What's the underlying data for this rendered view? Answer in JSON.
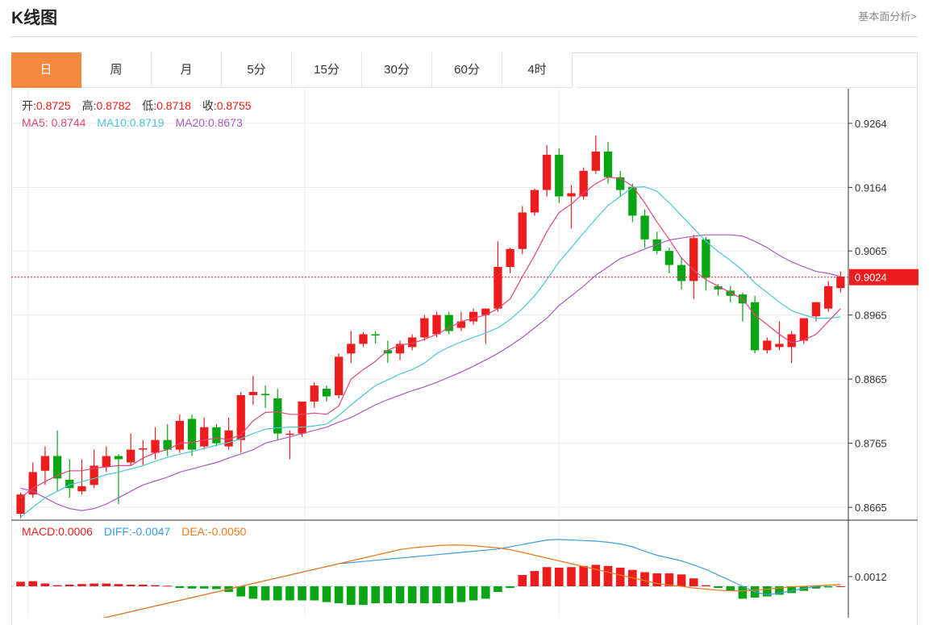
{
  "header": {
    "title": "K线图",
    "fundamental_link": "基本面分析>"
  },
  "tabs": [
    {
      "label": "日",
      "active": true
    },
    {
      "label": "周",
      "active": false
    },
    {
      "label": "月",
      "active": false
    },
    {
      "label": "5分",
      "active": false
    },
    {
      "label": "15分",
      "active": false
    },
    {
      "label": "30分",
      "active": false
    },
    {
      "label": "60分",
      "active": false
    },
    {
      "label": "4时",
      "active": false
    }
  ],
  "ohlc_info": {
    "open_label": "开:",
    "open": "0.8725",
    "high_label": "高:",
    "high": "0.8782",
    "low_label": "低:",
    "low": "0.8718",
    "close_label": "收:",
    "close": "0.8755"
  },
  "ma_info": {
    "ma5_label": "MA5:",
    "ma5": "0.8744",
    "ma10_label": "MA10:",
    "ma10": "0.8719",
    "ma20_label": "MA20:",
    "ma20": "0.8673"
  },
  "macd_info": {
    "macd_label": "MACD:",
    "macd": "0.0006",
    "diff_label": "DIFF:",
    "diff": "-0.0047",
    "dea_label": "DEA:",
    "dea": "-0.0050"
  },
  "colors": {
    "up": "#ee1d1d",
    "down": "#0aa514",
    "ma5": "#e0457b",
    "ma10": "#4bc6d3",
    "ma20": "#a85bc1",
    "diff": "#3c9ee0",
    "dea": "#f07a1c",
    "accent": "#f5883f"
  },
  "chart_data": {
    "type": "candlestick",
    "price_axis": {
      "ylim": [
        0.8645,
        0.9318
      ],
      "ticks": [
        "0.9264",
        "0.9164",
        "0.9065",
        "0.8965",
        "0.8865",
        "0.8765",
        "0.8665"
      ]
    },
    "current_price": "0.9024",
    "macd_axis": {
      "ticks": [
        "0.0012"
      ]
    },
    "candles": [
      [
        0.8655,
        0.8685,
        0.8648,
        0.8688
      ],
      [
        0.8685,
        0.872,
        0.868,
        0.8735
      ],
      [
        0.8722,
        0.8745,
        0.87,
        0.876
      ],
      [
        0.8745,
        0.871,
        0.869,
        0.8785
      ],
      [
        0.8708,
        0.8695,
        0.868,
        0.874
      ],
      [
        0.869,
        0.8698,
        0.8685,
        0.874
      ],
      [
        0.87,
        0.873,
        0.8695,
        0.8755
      ],
      [
        0.8728,
        0.8745,
        0.872,
        0.876
      ],
      [
        0.8745,
        0.874,
        0.867,
        0.8748
      ],
      [
        0.8735,
        0.8755,
        0.873,
        0.878
      ],
      [
        0.8755,
        0.8757,
        0.873,
        0.877
      ],
      [
        0.875,
        0.877,
        0.874,
        0.879
      ],
      [
        0.877,
        0.8755,
        0.8745,
        0.8795
      ],
      [
        0.8755,
        0.88,
        0.875,
        0.881
      ],
      [
        0.8803,
        0.8755,
        0.8745,
        0.881
      ],
      [
        0.876,
        0.879,
        0.8755,
        0.8805
      ],
      [
        0.879,
        0.8765,
        0.876,
        0.8795
      ],
      [
        0.876,
        0.8785,
        0.8755,
        0.8805
      ],
      [
        0.877,
        0.884,
        0.875,
        0.8845
      ],
      [
        0.884,
        0.8845,
        0.8825,
        0.887
      ],
      [
        0.8842,
        0.884,
        0.882,
        0.8855
      ],
      [
        0.8835,
        0.878,
        0.877,
        0.885
      ],
      [
        0.878,
        0.878,
        0.874,
        0.8785
      ],
      [
        0.878,
        0.883,
        0.8775,
        0.883
      ],
      [
        0.883,
        0.8855,
        0.882,
        0.886
      ],
      [
        0.885,
        0.8838,
        0.883,
        0.8855
      ],
      [
        0.884,
        0.89,
        0.8835,
        0.8905
      ],
      [
        0.8905,
        0.892,
        0.889,
        0.894
      ],
      [
        0.892,
        0.8935,
        0.8915,
        0.8938
      ],
      [
        0.8935,
        0.8933,
        0.892,
        0.894
      ],
      [
        0.891,
        0.8905,
        0.889,
        0.8925
      ],
      [
        0.8905,
        0.892,
        0.8895,
        0.8925
      ],
      [
        0.8915,
        0.893,
        0.891,
        0.8935
      ],
      [
        0.893,
        0.896,
        0.8925,
        0.8965
      ],
      [
        0.8935,
        0.8965,
        0.893,
        0.897
      ],
      [
        0.8965,
        0.894,
        0.8935,
        0.897
      ],
      [
        0.8945,
        0.8955,
        0.894,
        0.897
      ],
      [
        0.8955,
        0.897,
        0.895,
        0.8975
      ],
      [
        0.8965,
        0.8975,
        0.892,
        0.8975
      ],
      [
        0.8975,
        0.904,
        0.897,
        0.908
      ],
      [
        0.904,
        0.9068,
        0.903,
        0.907
      ],
      [
        0.9068,
        0.9125,
        0.906,
        0.9135
      ],
      [
        0.9125,
        0.916,
        0.912,
        0.9162
      ],
      [
        0.916,
        0.9215,
        0.915,
        0.923
      ],
      [
        0.9215,
        0.915,
        0.914,
        0.9225
      ],
      [
        0.915,
        0.9155,
        0.91,
        0.9168
      ],
      [
        0.915,
        0.919,
        0.9145,
        0.9195
      ],
      [
        0.919,
        0.922,
        0.9185,
        0.9245
      ],
      [
        0.922,
        0.918,
        0.917,
        0.9235
      ],
      [
        0.918,
        0.916,
        0.915,
        0.919
      ],
      [
        0.9165,
        0.912,
        0.911,
        0.917
      ],
      [
        0.912,
        0.9083,
        0.907,
        0.913
      ],
      [
        0.9083,
        0.9065,
        0.906,
        0.9095
      ],
      [
        0.9065,
        0.9043,
        0.903,
        0.907
      ],
      [
        0.9043,
        0.9018,
        0.9005,
        0.9055
      ],
      [
        0.9018,
        0.9085,
        0.899,
        0.909
      ],
      [
        0.9083,
        0.9023,
        0.9003,
        0.9087
      ],
      [
        0.901,
        0.9005,
        0.8995,
        0.9013
      ],
      [
        0.9003,
        0.8995,
        0.8985,
        0.901
      ],
      [
        0.8997,
        0.8983,
        0.8955,
        0.9
      ],
      [
        0.8985,
        0.891,
        0.8905,
        0.8995
      ],
      [
        0.891,
        0.8925,
        0.8905,
        0.893
      ],
      [
        0.8915,
        0.892,
        0.891,
        0.8955
      ],
      [
        0.8915,
        0.8935,
        0.889,
        0.894
      ],
      [
        0.8925,
        0.896,
        0.892,
        0.896
      ],
      [
        0.8963,
        0.8985,
        0.8955,
        0.8985
      ],
      [
        0.8975,
        0.901,
        0.897,
        0.9018
      ],
      [
        0.9007,
        0.9025,
        0.9,
        0.9033
      ]
    ],
    "ma5": [
      0.868,
      0.8695,
      0.8705,
      0.8715,
      0.8722,
      0.8722,
      0.8726,
      0.8728,
      0.873,
      0.873,
      0.8742,
      0.875,
      0.8755,
      0.8765,
      0.8766,
      0.877,
      0.8773,
      0.8771,
      0.8778,
      0.88,
      0.8813,
      0.8814,
      0.881,
      0.881,
      0.8812,
      0.881,
      0.8823,
      0.8865,
      0.888,
      0.8893,
      0.891,
      0.8918,
      0.8921,
      0.8927,
      0.8935,
      0.8945,
      0.8955,
      0.896,
      0.8965,
      0.8975,
      0.899,
      0.9025,
      0.9058,
      0.9095,
      0.9125,
      0.9138,
      0.9155,
      0.917,
      0.918,
      0.9178,
      0.9166,
      0.914,
      0.911,
      0.9083,
      0.9054,
      0.9035,
      0.902,
      0.901,
      0.9,
      0.899,
      0.8965,
      0.895,
      0.8935,
      0.8922,
      0.8926,
      0.8935,
      0.8955,
      0.8975
    ],
    "ma10": [
      0.865,
      0.8665,
      0.868,
      0.869,
      0.87,
      0.8705,
      0.871,
      0.8716,
      0.872,
      0.8725,
      0.873,
      0.8737,
      0.8743,
      0.8748,
      0.8752,
      0.8757,
      0.8762,
      0.8766,
      0.8772,
      0.878,
      0.8787,
      0.8789,
      0.879,
      0.879,
      0.8792,
      0.8795,
      0.8808,
      0.8825,
      0.884,
      0.8855,
      0.8864,
      0.8873,
      0.888,
      0.889,
      0.8905,
      0.8915,
      0.8923,
      0.893,
      0.8937,
      0.8945,
      0.8958,
      0.8975,
      0.8995,
      0.902,
      0.9048,
      0.907,
      0.9093,
      0.9115,
      0.9136,
      0.915,
      0.9164,
      0.9165,
      0.9158,
      0.914,
      0.912,
      0.91,
      0.908,
      0.9064,
      0.905,
      0.9035,
      0.9015,
      0.9,
      0.8985,
      0.8972,
      0.8965,
      0.896,
      0.896,
      0.8962
    ],
    "ma20": [
      0.8695,
      0.869,
      0.868,
      0.867,
      0.8663,
      0.866,
      0.8663,
      0.867,
      0.868,
      0.869,
      0.87,
      0.8706,
      0.8712,
      0.872,
      0.8725,
      0.873,
      0.8735,
      0.8742,
      0.8748,
      0.8755,
      0.8765,
      0.877,
      0.8775,
      0.878,
      0.8785,
      0.879,
      0.8798,
      0.8805,
      0.8815,
      0.8825,
      0.8833,
      0.884,
      0.8847,
      0.8853,
      0.886,
      0.8868,
      0.8876,
      0.8885,
      0.8895,
      0.8905,
      0.8917,
      0.893,
      0.8945,
      0.896,
      0.898,
      0.8995,
      0.901,
      0.9027,
      0.904,
      0.9053,
      0.906,
      0.9068,
      0.9075,
      0.9082,
      0.9085,
      0.9088,
      0.909,
      0.909,
      0.909,
      0.9088,
      0.908,
      0.907,
      0.9058,
      0.9048,
      0.904,
      0.9033,
      0.903,
      0.9025
    ],
    "macd_hist": [
      0.0008,
      0.0009,
      0.0005,
      0.0002,
      0.0003,
      0.0004,
      0.0005,
      0.0005,
      0.0004,
      0.0003,
      0.0003,
      0.0002,
      0.0001,
      -0.0003,
      -0.0004,
      -0.0004,
      -0.0005,
      -0.001,
      -0.0018,
      -0.0022,
      -0.0025,
      -0.0025,
      -0.0025,
      -0.0025,
      -0.0025,
      -0.0028,
      -0.003,
      -0.0033,
      -0.0033,
      -0.003,
      -0.003,
      -0.003,
      -0.003,
      -0.003,
      -0.003,
      -0.003,
      -0.0028,
      -0.0025,
      -0.0022,
      -0.001,
      -0.0003,
      0.002,
      0.0027,
      0.0034,
      0.0033,
      0.0034,
      0.0036,
      0.0038,
      0.0036,
      0.0033,
      0.0029,
      0.0025,
      0.0023,
      0.0023,
      0.0021,
      0.0014,
      0.0002,
      -0.0003,
      -0.0008,
      -0.0022,
      -0.002,
      -0.0018,
      -0.0015,
      -0.0012,
      -0.0008,
      -0.0004,
      -0.0002,
      0.0
    ],
    "diff": [
      -0.009,
      -0.0085,
      -0.008,
      -0.0075,
      -0.007,
      -0.0065,
      -0.006,
      -0.0055,
      -0.005,
      -0.0045,
      -0.004,
      -0.0035,
      -0.003,
      -0.0025,
      -0.002,
      -0.0015,
      -0.001,
      -0.0005,
      0.0,
      0.0005,
      0.001,
      0.0015,
      0.002,
      0.0025,
      0.003,
      0.0035,
      0.004,
      0.0042,
      0.0044,
      0.0046,
      0.0048,
      0.005,
      0.0052,
      0.0054,
      0.0056,
      0.0058,
      0.006,
      0.0062,
      0.0064,
      0.0066,
      0.007,
      0.0074,
      0.0078,
      0.0082,
      0.0083,
      0.0082,
      0.0081,
      0.008,
      0.0078,
      0.0075,
      0.007,
      0.0062,
      0.0055,
      0.005,
      0.0045,
      0.0038,
      0.003,
      0.002,
      0.001,
      0.0,
      -0.001,
      -0.0015,
      -0.0012,
      -0.0008,
      -0.0004,
      0.0,
      0.0002,
      0.0003
    ],
    "dea": [
      -0.008,
      -0.0078,
      -0.0075,
      -0.0072,
      -0.0068,
      -0.0064,
      -0.006,
      -0.0055,
      -0.005,
      -0.0045,
      -0.004,
      -0.0035,
      -0.003,
      -0.0025,
      -0.002,
      -0.0015,
      -0.001,
      -0.0005,
      0.0,
      0.0005,
      0.001,
      0.0015,
      0.002,
      0.0025,
      0.003,
      0.0035,
      0.004,
      0.0045,
      0.005,
      0.0055,
      0.006,
      0.0065,
      0.0068,
      0.007,
      0.0072,
      0.0073,
      0.0073,
      0.0072,
      0.007,
      0.0068,
      0.0065,
      0.006,
      0.0055,
      0.005,
      0.0045,
      0.004,
      0.0035,
      0.003,
      0.0025,
      0.002,
      0.0015,
      0.001,
      0.0005,
      0.0002,
      0.0,
      -0.0003,
      -0.0005,
      -0.0007,
      -0.0008,
      -0.0008,
      -0.0007,
      -0.0005,
      -0.0003,
      -0.0001,
      0.0,
      0.0001,
      0.0002,
      0.0003
    ]
  }
}
